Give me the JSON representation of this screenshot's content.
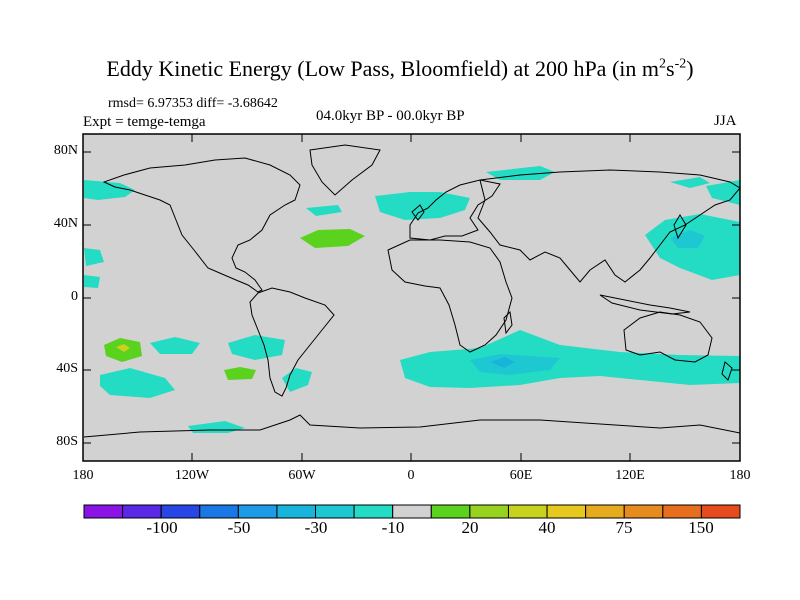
{
  "title_main": "Eddy Kinetic Energy (Low Pass, Bloomfield) at 200 hPa (in m",
  "title_sup1": "2",
  "title_mid": "s",
  "title_sup2": "-2",
  "title_close": ")",
  "stats": "rmsd= 6.97353 diff= -3.68642",
  "experiment": "Expt = temge-temga",
  "period": "04.0kyr BP - 00.0kyr BP",
  "season": "JJA",
  "lat_labels": [
    "80N",
    "40N",
    "0",
    "40S",
    "80S"
  ],
  "lon_labels": [
    "180",
    "120W",
    "60W",
    "0",
    "60E",
    "120E",
    "180"
  ],
  "colorbar": {
    "colors": [
      "#8a14e6",
      "#5a28e6",
      "#2846e6",
      "#1a78e6",
      "#1e9be6",
      "#19b4dc",
      "#1ec8d2",
      "#24dcc4",
      "#d2d2d2",
      "#5ad21e",
      "#96d21e",
      "#c8d21e",
      "#e6c81e",
      "#e6aa1e",
      "#e68c1e",
      "#e66e1e",
      "#e64b1e"
    ],
    "labels": [
      "-100",
      "-50",
      "-30",
      "-10",
      "20",
      "40",
      "75",
      "150"
    ]
  },
  "map_colors": {
    "background": "#d2d2d2",
    "negative_light": "#24dcc4",
    "negative_mid": "#1ec8d2",
    "negative_dark": "#19b4dc",
    "positive_light": "#5ad21e",
    "positive_mid": "#96d21e",
    "positive_high": "#c8d21e"
  }
}
